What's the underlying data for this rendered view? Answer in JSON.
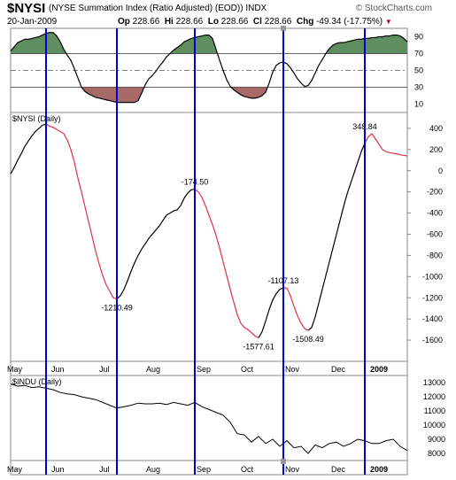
{
  "header": {
    "symbol": "$NYSI",
    "name": "(NYSE Summation Index (Ratio Adjusted) (EOD))",
    "exchange": "INDX",
    "brand": "© StockCharts.com",
    "date": "20-Jan-2009",
    "open_label": "Op",
    "open": "228.66",
    "high_label": "Hi",
    "high": "228.66",
    "low_label": "Lo",
    "low": "228.66",
    "close_label": "Cl",
    "close": "228.66",
    "change_label": "Chg",
    "change": "-49.34 (-17.75%)"
  },
  "colors": {
    "up": "#000000",
    "down": "#e0304a",
    "marker": "#0000cc",
    "osc_over": "#5f8f60",
    "osc_under": "#a86a68"
  },
  "chart_data": [
    {
      "type": "area",
      "ylim": [
        0,
        100
      ],
      "ticks": [
        "90",
        "70",
        "50",
        "30",
        "10"
      ],
      "tick_values": [
        90,
        70,
        50,
        30,
        10
      ],
      "levels": [
        70,
        30
      ],
      "midline": 50,
      "x": [
        0,
        4,
        8,
        12,
        16,
        20,
        24,
        28,
        32,
        36,
        40,
        44,
        48,
        52,
        56,
        60,
        64,
        68,
        72,
        76,
        80,
        84,
        88,
        92,
        96,
        100,
        104,
        108,
        112,
        116,
        120,
        124,
        128,
        132,
        136,
        140,
        144,
        148,
        152,
        156,
        160,
        164,
        168,
        172,
        176,
        180,
        184,
        188,
        192,
        196,
        200,
        204,
        208,
        212,
        216,
        220,
        224,
        228,
        232,
        236,
        240,
        244,
        248,
        252,
        256,
        260,
        264,
        268,
        272,
        276,
        280,
        284,
        288,
        292,
        296,
        300,
        304,
        308,
        312,
        316,
        320,
        324,
        328,
        332,
        336,
        340,
        344,
        348,
        352,
        356,
        360,
        364,
        368,
        372,
        376,
        380,
        384,
        388,
        392,
        396,
        400,
        404,
        408,
        412,
        416,
        420,
        424,
        428,
        432,
        436,
        440,
        444,
        448
      ],
      "values": [
        73,
        78,
        83,
        85,
        87,
        87,
        88,
        89,
        90,
        92,
        94,
        95,
        95,
        91,
        84,
        75,
        68,
        62,
        52,
        41,
        30,
        25,
        22,
        20,
        18,
        17,
        16,
        15,
        14,
        13,
        12,
        12,
        12,
        12,
        12,
        12,
        14,
        23,
        33,
        40,
        44,
        49,
        55,
        60,
        66,
        70,
        74,
        77,
        80,
        84,
        86,
        88,
        89,
        90,
        91,
        92,
        92,
        88,
        75,
        62,
        50,
        39,
        31,
        27,
        24,
        21,
        19,
        18,
        17,
        17,
        18,
        20,
        24,
        35,
        48,
        56,
        59,
        60,
        58,
        53,
        47,
        40,
        35,
        31,
        32,
        38,
        47,
        56,
        63,
        70,
        76,
        80,
        82,
        83,
        83,
        84,
        85,
        86,
        87,
        87,
        88,
        88,
        89,
        89,
        90,
        90,
        91,
        91,
        92,
        92,
        91,
        88,
        84
      ]
    },
    {
      "type": "line",
      "ylim": [
        -1800,
        550
      ],
      "ticks": [
        "400",
        "200",
        "0",
        "-200",
        "-400",
        "-600",
        "-800",
        "-1000",
        "-1200",
        "-1400",
        "-1600"
      ],
      "tick_values": [
        400,
        200,
        0,
        -200,
        -400,
        -600,
        -800,
        -1000,
        -1200,
        -1400,
        -1600
      ],
      "x_categories": [
        "May",
        "Jun",
        "Jul",
        "Aug",
        "Sep",
        "Oct",
        "Nov",
        "Dec",
        "2009"
      ],
      "x": [
        0,
        4,
        8,
        12,
        16,
        20,
        24,
        28,
        32,
        36,
        40,
        44,
        48,
        52,
        56,
        60,
        64,
        68,
        72,
        76,
        80,
        84,
        88,
        92,
        96,
        100,
        104,
        108,
        112,
        116,
        120,
        124,
        128,
        132,
        136,
        140,
        144,
        148,
        152,
        156,
        160,
        164,
        168,
        172,
        176,
        180,
        184,
        188,
        192,
        196,
        200,
        204,
        208,
        212,
        216,
        220,
        224,
        228,
        232,
        236,
        240,
        244,
        248,
        252,
        256,
        260,
        264,
        268,
        272,
        276,
        280,
        284,
        288,
        292,
        296,
        300,
        304,
        308,
        312,
        316,
        320,
        324,
        328,
        332,
        336,
        340,
        344,
        348,
        352,
        356,
        360,
        364,
        368,
        372,
        376,
        380,
        384,
        388,
        392,
        396,
        400,
        404,
        408,
        412,
        416,
        420,
        424,
        428,
        432,
        436,
        440,
        444,
        448
      ],
      "values": [
        -30,
        30,
        100,
        160,
        230,
        280,
        330,
        370,
        400,
        430,
        440,
        420,
        410,
        390,
        370,
        350,
        290,
        200,
        80,
        -70,
        -200,
        -340,
        -480,
        -620,
        -760,
        -880,
        -990,
        -1080,
        -1140,
        -1200,
        -1211,
        -1180,
        -1120,
        -1040,
        -950,
        -870,
        -800,
        -740,
        -690,
        -640,
        -600,
        -560,
        -520,
        -470,
        -420,
        -400,
        -380,
        -370,
        -330,
        -260,
        -210,
        -180,
        -175,
        -200,
        -250,
        -330,
        -420,
        -510,
        -610,
        -730,
        -860,
        -990,
        -1120,
        -1240,
        -1360,
        -1440,
        -1480,
        -1500,
        -1530,
        -1560,
        -1578,
        -1520,
        -1420,
        -1310,
        -1220,
        -1160,
        -1120,
        -1105,
        -1108,
        -1180,
        -1280,
        -1370,
        -1440,
        -1490,
        -1508,
        -1480,
        -1380,
        -1250,
        -1120,
        -990,
        -860,
        -730,
        -600,
        -470,
        -340,
        -220,
        -120,
        -20,
        80,
        180,
        260,
        320,
        349,
        300,
        250,
        200,
        180,
        170,
        165,
        160,
        150,
        145,
        140
      ],
      "colors_by_segment": [
        [
          "#000",
          0,
          40
        ],
        [
          "#e0304a",
          40,
          120
        ],
        [
          "#000",
          120,
          208
        ],
        [
          "#e0304a",
          208,
          280
        ],
        [
          "#000",
          280,
          308
        ],
        [
          "#e0304a",
          308,
          336
        ],
        [
          "#000",
          336,
          400
        ],
        [
          "#e0304a",
          400,
          448
        ]
      ],
      "annotations": [
        {
          "x": 120,
          "y": -1211,
          "label": "-1210.49",
          "pos": "below"
        },
        {
          "x": 208,
          "y": -175,
          "label": "-174.50",
          "pos": "above"
        },
        {
          "x": 280,
          "y": -1578,
          "label": "-1577.61",
          "pos": "below"
        },
        {
          "x": 308,
          "y": -1105,
          "label": "-1107.13",
          "pos": "above"
        },
        {
          "x": 336,
          "y": -1508,
          "label": "-1508.49",
          "pos": "below"
        },
        {
          "x": 400,
          "y": 349,
          "label": "348.84",
          "pos": "above"
        }
      ],
      "markers_x": [
        40,
        120,
        208,
        308,
        400
      ]
    },
    {
      "type": "line",
      "ylim": [
        7500,
        13500
      ],
      "ticks": [
        "13000",
        "12000",
        "11000",
        "10000",
        "9000",
        "8000"
      ],
      "tick_values": [
        13000,
        12000,
        11000,
        10000,
        9000,
        8000
      ],
      "x_categories": [
        "May",
        "Jun",
        "Jul",
        "Aug",
        "Sep",
        "Oct",
        "Nov",
        "Dec",
        "2009"
      ],
      "x": [
        0,
        8,
        16,
        24,
        32,
        40,
        48,
        56,
        64,
        72,
        80,
        88,
        96,
        104,
        112,
        120,
        128,
        136,
        144,
        152,
        160,
        168,
        176,
        184,
        192,
        200,
        208,
        216,
        224,
        232,
        240,
        248,
        256,
        264,
        272,
        280,
        288,
        296,
        304,
        312,
        320,
        328,
        336,
        344,
        352,
        360,
        368,
        376,
        384,
        392,
        400,
        408,
        416,
        424,
        432,
        440,
        448
      ],
      "values": [
        12900,
        12750,
        12800,
        12650,
        12700,
        12600,
        12500,
        12300,
        12200,
        12150,
        12000,
        11900,
        11800,
        11600,
        11400,
        11200,
        11300,
        11400,
        11550,
        11500,
        11500,
        11550,
        11450,
        11600,
        11500,
        11400,
        11600,
        11300,
        11100,
        10900,
        10700,
        10200,
        9400,
        9300,
        8800,
        9200,
        8700,
        9000,
        8500,
        8900,
        8400,
        8500,
        8000,
        8600,
        8400,
        8700,
        8800,
        8500,
        8700,
        9000,
        8900,
        8700,
        8700,
        8900,
        9000,
        8500,
        8200
      ],
      "markers_x": [
        40,
        120,
        208,
        308,
        400
      ]
    }
  ],
  "panels": {
    "osc_label": "",
    "main_label": "$NYSI (Daily)",
    "indu_label": "$INDU (Daily)"
  }
}
